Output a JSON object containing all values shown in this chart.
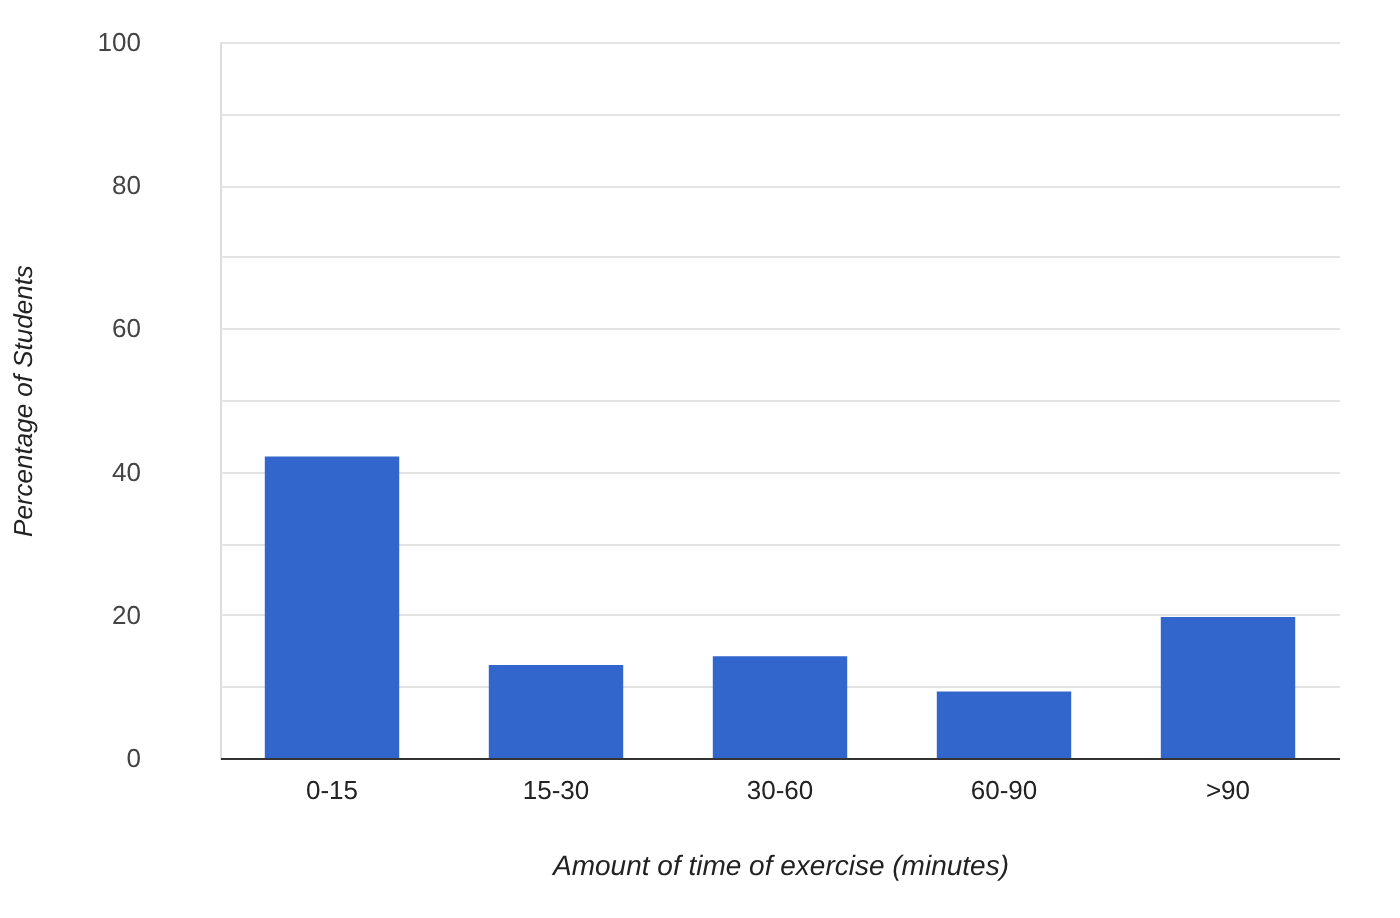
{
  "chart_data": {
    "type": "bar",
    "xlabel": "Amount of time of exercise (minutes)",
    "ylabel": "Percentage of Students",
    "categories": [
      "0-15",
      "15-30",
      "30-60",
      "60-90",
      ">90"
    ],
    "values": [
      42.1,
      13.0,
      14.2,
      9.3,
      19.7
    ],
    "color": "#3366cc",
    "ylim": [
      0,
      100
    ],
    "yticks": [
      0,
      {
        "value": 10,
        "label": null
      },
      20,
      {
        "value": 30,
        "label": null
      },
      40,
      {
        "value": 50,
        "label": null
      },
      60,
      {
        "value": 70,
        "label": null
      },
      80,
      {
        "value": 90,
        "label": null
      },
      100
    ],
    "grid": "y"
  }
}
